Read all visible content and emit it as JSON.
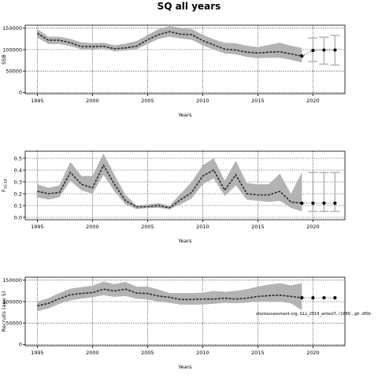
{
  "page": {
    "title": "SQ all years"
  },
  "colors": {
    "band": "#b3b3b3",
    "line": "#2a2a2a",
    "point": "#000000",
    "frame": "#000000",
    "grid": "#000000",
    "whisker": "#b3b3b3"
  },
  "chart_data": [
    {
      "id": "ssb",
      "type": "line",
      "title": "",
      "ylabel": "SSB",
      "xlabel": "Years",
      "xlim": [
        1993.9,
        2022.9
      ],
      "ylim": [
        -3000,
        157000
      ],
      "xticks": [
        1995,
        2000,
        2005,
        2010,
        2015,
        2020
      ],
      "yticks": [
        0,
        50000,
        100000,
        150000
      ],
      "grid": true,
      "series": [
        {
          "kind": "band",
          "x": [
            1995,
            1996,
            1997,
            1998,
            1999,
            2000,
            2001,
            2002,
            2003,
            2004,
            2005,
            2006,
            2007,
            2008,
            2009,
            2010,
            2011,
            2012,
            2013,
            2014,
            2015,
            2016,
            2017,
            2018,
            2019
          ],
          "lower": [
            128000,
            113000,
            113000,
            108000,
            101000,
            101000,
            102000,
            96000,
            98000,
            101000,
            113000,
            125000,
            130000,
            126000,
            123000,
            110000,
            100000,
            91000,
            89000,
            83000,
            80000,
            81000,
            81000,
            76000,
            70000
          ],
          "upper": [
            148000,
            130000,
            130000,
            125000,
            117000,
            115000,
            116000,
            110000,
            114000,
            120000,
            134000,
            148000,
            155000,
            151000,
            148000,
            135000,
            124000,
            116000,
            115000,
            109000,
            106000,
            111000,
            116000,
            109000,
            104000
          ]
        },
        {
          "kind": "line",
          "x": [
            1995,
            1996,
            1997,
            1998,
            1999,
            2000,
            2001,
            2002,
            2003,
            2004,
            2005,
            2006,
            2007,
            2008,
            2009,
            2010,
            2011,
            2012,
            2013,
            2014,
            2015,
            2016,
            2017,
            2018,
            2019
          ],
          "values": [
            138000,
            122000,
            122000,
            116000,
            107000,
            107000,
            108000,
            102000,
            104000,
            108000,
            123000,
            135000,
            142000,
            136000,
            135000,
            121000,
            111000,
            101000,
            99000,
            94000,
            92000,
            94000,
            95000,
            90000,
            85000
          ]
        },
        {
          "kind": "forecast",
          "x": [
            2020,
            2021,
            2022
          ],
          "values": [
            98000,
            99000,
            99000
          ],
          "lower": [
            72000,
            66000,
            64000
          ],
          "upper": [
            127000,
            129000,
            133000
          ]
        }
      ]
    },
    {
      "id": "f",
      "type": "line",
      "title": "",
      "ylabel": "F10-18",
      "xlabel": "Years",
      "xlim": [
        1993.9,
        2022.9
      ],
      "ylim": [
        -0.02,
        0.56
      ],
      "xticks": [
        1995,
        2000,
        2005,
        2010,
        2015,
        2020
      ],
      "yticks": [
        0.0,
        0.1,
        0.2,
        0.3,
        0.4,
        0.5
      ],
      "ytick_labels": [
        "0.0",
        "0.1",
        "0.2",
        "0.3",
        "0.4",
        "0.5"
      ],
      "grid": true,
      "series": [
        {
          "kind": "band",
          "x": [
            1995,
            1996,
            1997,
            1998,
            1999,
            2000,
            2001,
            2002,
            2003,
            2004,
            2005,
            2006,
            2007,
            2008,
            2009,
            2010,
            2011,
            2012,
            2013,
            2014,
            2015,
            2016,
            2017,
            2018,
            2019
          ],
          "lower": [
            0.17,
            0.15,
            0.17,
            0.31,
            0.23,
            0.2,
            0.36,
            0.22,
            0.11,
            0.07,
            0.08,
            0.08,
            0.07,
            0.11,
            0.16,
            0.28,
            0.33,
            0.18,
            0.27,
            0.15,
            0.14,
            0.13,
            0.14,
            0.08,
            0.05
          ],
          "upper": [
            0.28,
            0.25,
            0.27,
            0.47,
            0.35,
            0.35,
            0.54,
            0.36,
            0.19,
            0.1,
            0.11,
            0.12,
            0.1,
            0.2,
            0.3,
            0.44,
            0.5,
            0.31,
            0.48,
            0.29,
            0.28,
            0.28,
            0.37,
            0.2,
            0.38
          ]
        },
        {
          "kind": "line",
          "x": [
            1995,
            1996,
            1997,
            1998,
            1999,
            2000,
            2001,
            2002,
            2003,
            2004,
            2005,
            2006,
            2007,
            2008,
            2009,
            2010,
            2011,
            2012,
            2013,
            2014,
            2015,
            2016,
            2017,
            2018,
            2019
          ],
          "values": [
            0.22,
            0.2,
            0.21,
            0.38,
            0.28,
            0.25,
            0.44,
            0.28,
            0.14,
            0.09,
            0.09,
            0.1,
            0.08,
            0.15,
            0.21,
            0.35,
            0.4,
            0.23,
            0.36,
            0.2,
            0.19,
            0.19,
            0.22,
            0.13,
            0.12
          ]
        },
        {
          "kind": "forecast",
          "x": [
            2020,
            2021,
            2022
          ],
          "values": [
            0.12,
            0.12,
            0.12
          ],
          "lower": [
            0.05,
            0.05,
            0.05
          ],
          "upper": [
            0.38,
            0.38,
            0.38
          ]
        }
      ]
    },
    {
      "id": "recruits",
      "type": "line",
      "title": "",
      "ylabel": "Recruits (age 5)",
      "xlabel": "Years",
      "xlim": [
        1993.9,
        2022.9
      ],
      "ylim": [
        -3000,
        157000
      ],
      "xticks": [
        1995,
        2000,
        2005,
        2010,
        2015,
        2020
      ],
      "yticks": [
        0,
        50000,
        100000,
        150000
      ],
      "grid": true,
      "annotation": "stockassessment.org, GLL_2019_antest7, r1889 , git: df0b",
      "series": [
        {
          "kind": "band",
          "x": [
            1995,
            1996,
            1997,
            1998,
            1999,
            2000,
            2001,
            2002,
            2003,
            2004,
            2005,
            2006,
            2007,
            2008,
            2009,
            2010,
            2011,
            2012,
            2013,
            2014,
            2015,
            2016,
            2017,
            2018,
            2019
          ],
          "lower": [
            78000,
            84000,
            95000,
            103000,
            107000,
            110000,
            115000,
            111000,
            113000,
            107000,
            105000,
            100000,
            97000,
            93000,
            93000,
            93000,
            95000,
            97000,
            96000,
            98000,
            100000,
            100000,
            100000,
            96000,
            80000
          ],
          "upper": [
            100000,
            108000,
            120000,
            130000,
            134000,
            137000,
            147000,
            141000,
            146000,
            135000,
            135000,
            128000,
            120000,
            120000,
            120000,
            121000,
            125000,
            123000,
            125000,
            129000,
            135000,
            140000,
            143000,
            138000,
            143000
          ]
        },
        {
          "kind": "line",
          "x": [
            1995,
            1996,
            1997,
            1998,
            1999,
            2000,
            2001,
            2002,
            2003,
            2004,
            2005,
            2006,
            2007,
            2008,
            2009,
            2010,
            2011,
            2012,
            2013,
            2014,
            2015,
            2016,
            2017,
            2018,
            2019
          ],
          "values": [
            90000,
            96000,
            107000,
            116000,
            119000,
            121000,
            129000,
            125000,
            129000,
            120000,
            119000,
            113000,
            110000,
            105000,
            105000,
            106000,
            106000,
            108000,
            106000,
            108000,
            112000,
            114000,
            115000,
            112000,
            109000
          ]
        },
        {
          "kind": "forecast",
          "x": [
            2020,
            2021,
            2022
          ],
          "values": [
            109000,
            109000,
            109000
          ],
          "lower": [
            109000,
            109000,
            109000
          ],
          "upper": [
            109000,
            109000,
            109000
          ]
        }
      ]
    }
  ]
}
